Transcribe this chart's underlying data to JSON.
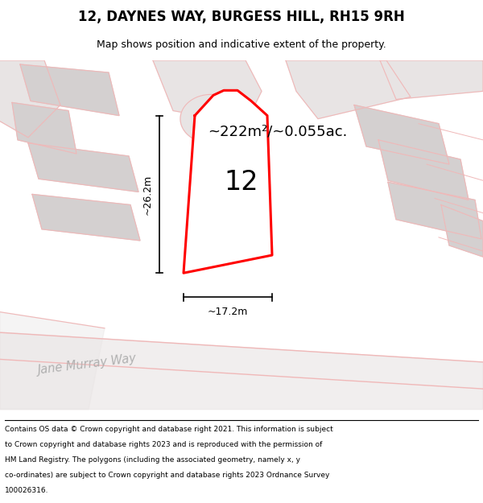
{
  "title": "12, DAYNES WAY, BURGESS HILL, RH15 9RH",
  "subtitle": "Map shows position and indicative extent of the property.",
  "area_label": "~222m²/~0.055ac.",
  "number_label": "12",
  "dim_height": "~26.2m",
  "dim_width": "~17.2m",
  "street_label": "Jane Murray Way",
  "footer_lines": [
    "Contains OS data © Crown copyright and database right 2021. This information is subject",
    "to Crown copyright and database rights 2023 and is reproduced with the permission of",
    "HM Land Registry. The polygons (including the associated geometry, namely x, y",
    "co-ordinates) are subject to Crown copyright and database rights 2023 Ordnance Survey",
    "100026316."
  ],
  "bg_color": "#ffffff",
  "map_bg": "#f7f2f2",
  "plot_color": "#ff0000",
  "light_red": "#f0b8b8",
  "gray_fill": "#d4d0d0",
  "light_gray": "#e8e4e4",
  "figsize": [
    6.0,
    6.25
  ],
  "dpi": 100
}
